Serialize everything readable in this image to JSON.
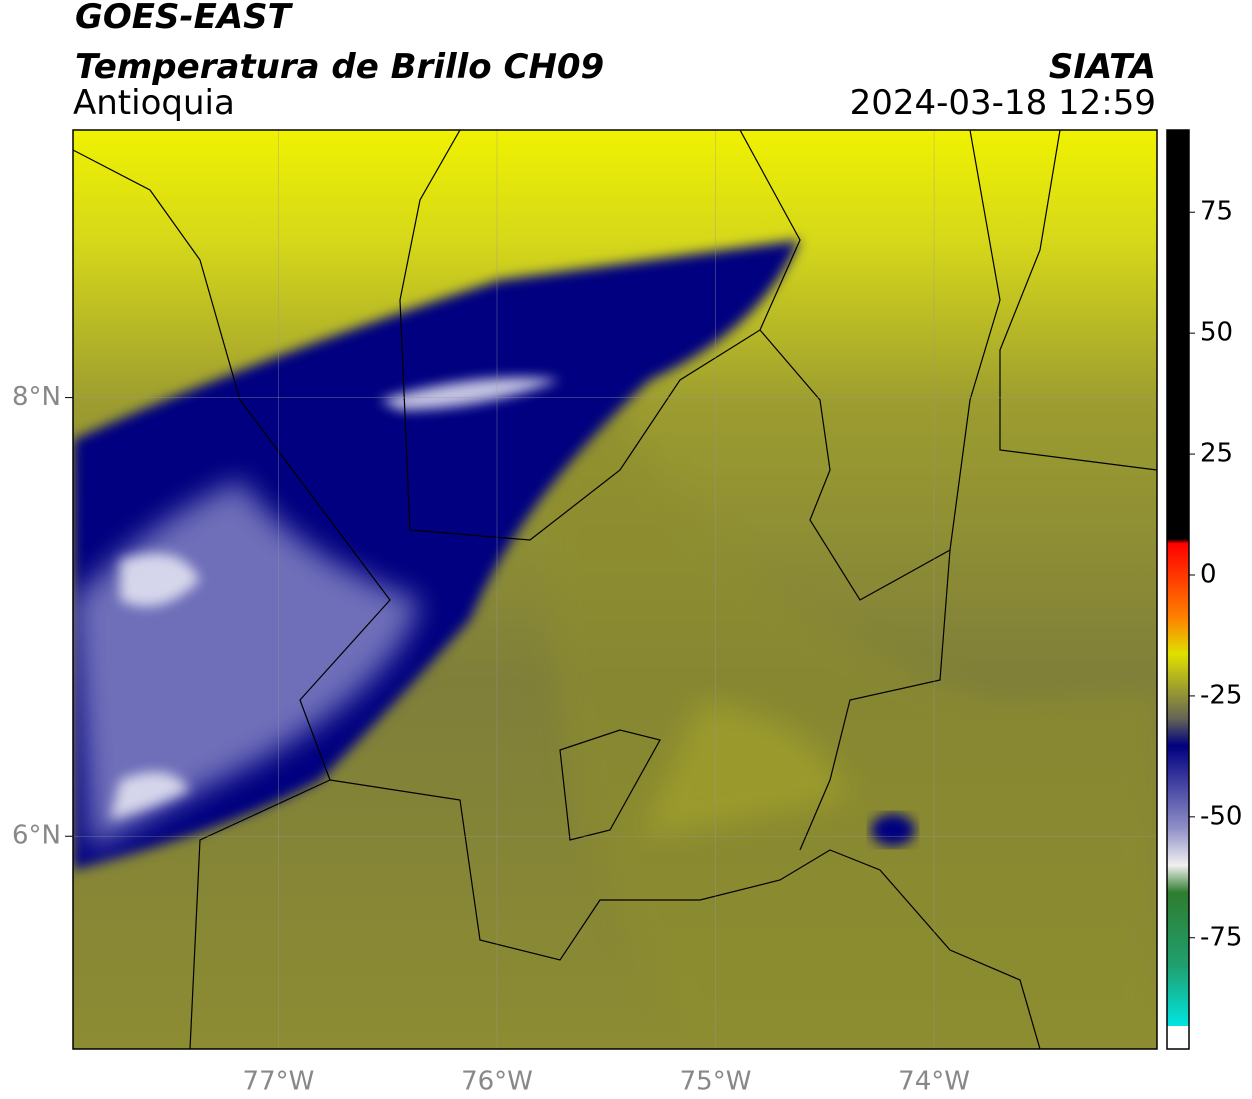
{
  "header": {
    "title": "GOES-EAST",
    "subtitle": "Temperatura de Brillo CH09",
    "region": "Antioquia",
    "source": "SIATA",
    "datetime": "2024-03-18 12:59"
  },
  "map": {
    "xlim": [
      -77.94,
      -72.98
    ],
    "ylim": [
      5.03,
      9.22
    ],
    "xticks": [
      {
        "value": -77,
        "label": "77°W"
      },
      {
        "value": -76,
        "label": "76°W"
      },
      {
        "value": -75,
        "label": "75°W"
      },
      {
        "value": -74,
        "label": "74°W"
      }
    ],
    "yticks": [
      {
        "value": 6,
        "label": "6°N"
      },
      {
        "value": 8,
        "label": "8°N"
      }
    ],
    "grid": true
  },
  "colorbar": {
    "lim": [
      -98,
      92
    ],
    "ticks": [
      -75,
      -50,
      -25,
      0,
      25,
      50,
      75
    ]
  }
}
